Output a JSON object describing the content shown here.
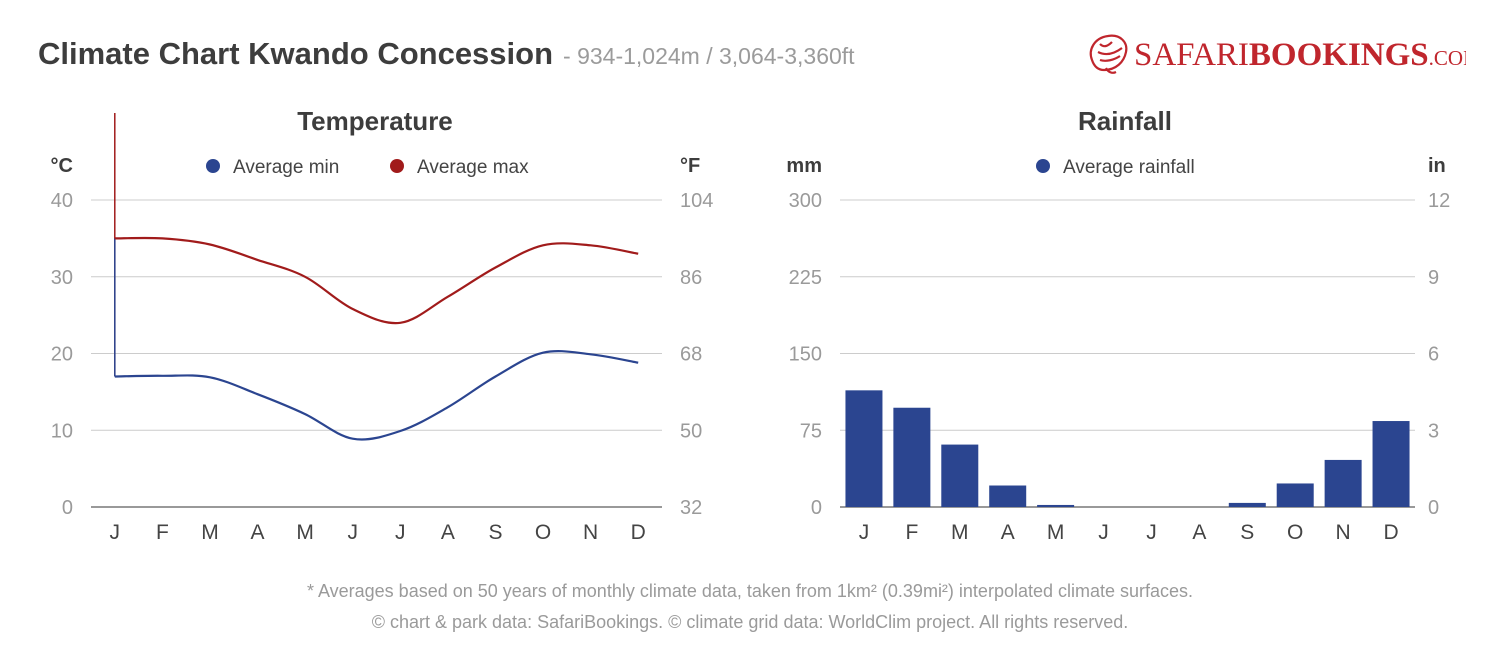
{
  "header": {
    "title": "Climate Chart Kwando Concession",
    "subtitle": "- 934-1,024m / 3,064-3,360ft"
  },
  "logo": {
    "text_prefix": "SAFARI",
    "text_main": "BOOKINGS",
    "text_suffix": ".COM",
    "icon": "lion-head-icon",
    "color": "#c0262d"
  },
  "chart_data": [
    {
      "type": "line",
      "title": "Temperature",
      "left_unit": "°C",
      "right_unit": "°F",
      "categories": [
        "J",
        "F",
        "M",
        "A",
        "M",
        "J",
        "J",
        "A",
        "S",
        "O",
        "N",
        "D"
      ],
      "series": [
        {
          "name": "Average min",
          "color": "#2b4590",
          "values": [
            17,
            17.1,
            16.9,
            14.7,
            12.1,
            8.9,
            9.9,
            13,
            17,
            20.1,
            19.9,
            18.8
          ]
        },
        {
          "name": "Average max",
          "color": "#a11b1b",
          "values": [
            35,
            35,
            34.2,
            32.2,
            30,
            25.8,
            24,
            27.4,
            31.2,
            34.1,
            34.1,
            33
          ]
        }
      ],
      "ylim": [
        0,
        40
      ],
      "yticks": [
        "40",
        "30",
        "20",
        "10",
        "0"
      ],
      "yticks_right": [
        "104",
        "86",
        "68",
        "50",
        "32"
      ],
      "grid": true,
      "legend": "top-center"
    },
    {
      "type": "bar",
      "title": "Rainfall",
      "left_unit": "mm",
      "right_unit": "in",
      "categories": [
        "J",
        "F",
        "M",
        "A",
        "M",
        "J",
        "J",
        "A",
        "S",
        "O",
        "N",
        "D"
      ],
      "series": [
        {
          "name": "Average rainfall",
          "color": "#2b4590",
          "values": [
            114,
            97,
            61,
            21,
            2,
            0,
            0,
            0,
            4,
            23,
            46,
            84
          ]
        }
      ],
      "ylim": [
        0,
        300
      ],
      "yticks": [
        "300",
        "225",
        "150",
        "75",
        "0"
      ],
      "yticks_right": [
        "12",
        "9",
        "6",
        "3",
        "0"
      ],
      "grid": true,
      "legend": "top-center"
    }
  ],
  "footer": {
    "line1": "* Averages based on 50 years of monthly climate data, taken from 1km² (0.39mi²) interpolated climate surfaces.",
    "line2": "© chart & park data: SafariBookings. © climate grid data: WorldClim project. All rights reserved."
  }
}
